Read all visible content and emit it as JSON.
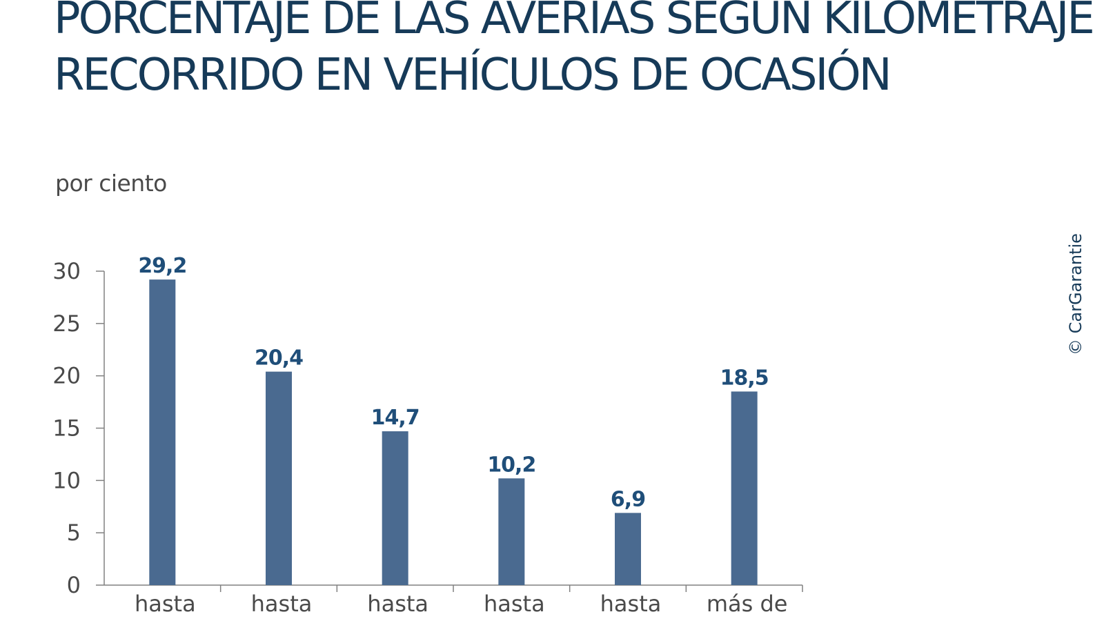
{
  "title_line1": "PORCENTAJE DE LAS AVERÍAS SEGÚN KILOMETRAJE",
  "title_line2": "RECORRIDO EN VEHÍCULOS DE OCASIÓN",
  "credit": "© CarGarantie",
  "colors": {
    "bar": "#4a6a90",
    "value_label": "#1f4e79",
    "title": "#163a58",
    "axis": "#808080"
  },
  "chart_data": {
    "type": "bar",
    "title": "PORCENTAJE DE LAS AVERÍAS SEGÚN KILOMETRAJE RECORRIDO EN VEHÍCULOS DE OCASIÓN",
    "ylabel": "por ciento",
    "xlabel": "",
    "ylim": [
      0,
      30
    ],
    "yticks": [
      0,
      5,
      10,
      15,
      20,
      25,
      30
    ],
    "categories": [
      "hasta",
      "hasta",
      "hasta",
      "hasta",
      "hasta",
      "más de"
    ],
    "values": [
      29.2,
      20.4,
      14.7,
      10.2,
      6.9,
      18.5
    ],
    "value_labels": [
      "29,2",
      "20,4",
      "14,7",
      "10,2",
      "6,9",
      "18,5"
    ],
    "grid": false,
    "legend": "none"
  }
}
